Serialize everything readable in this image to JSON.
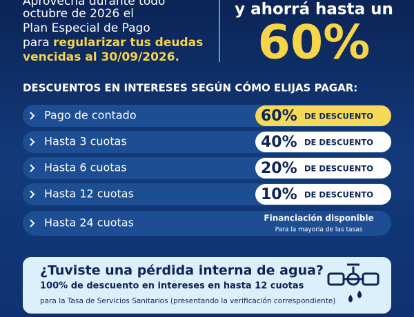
{
  "intro": {
    "lines": [
      "Aprovechá durante todo",
      "octubre de 2026 el",
      "Plan Especial de Pago"
    ],
    "para": "para",
    "highlight": "regularizar tus deudas",
    "last": "vencidas al 30/09/2026."
  },
  "headline": {
    "text": "y ahorrá hasta un",
    "amount": "60%"
  },
  "section_title": "DESCUENTOS EN INTERESES SEGÚN CÓMO ELIJAS PAGAR:",
  "rows": [
    {
      "label": "Pago de contado",
      "percent": "60%",
      "suffix": "DE DESCUENTO"
    },
    {
      "label": "Hasta 3 cuotas",
      "percent": "40%",
      "suffix": "DE DESCUENTO"
    },
    {
      "label": "Hasta 6 cuotas",
      "percent": "20%",
      "suffix": "DE DESCUENTO"
    },
    {
      "label": "Hasta 12 cuotas",
      "percent": "10%",
      "suffix": "DE DESCUENTO"
    },
    {
      "label": "Hasta 24 cuotas",
      "note": "Financiación disponible",
      "subnote": "Para la mayoría de las tasas"
    }
  ],
  "leak_box": {
    "title": "¿Tuviste una pérdida interna de agua?",
    "line1": "100% de descuento en intereses en hasta 12 cuotas",
    "line2": "para la Tasa de Servicios Sanitarios (presentando la verificación correspondiente)"
  }
}
